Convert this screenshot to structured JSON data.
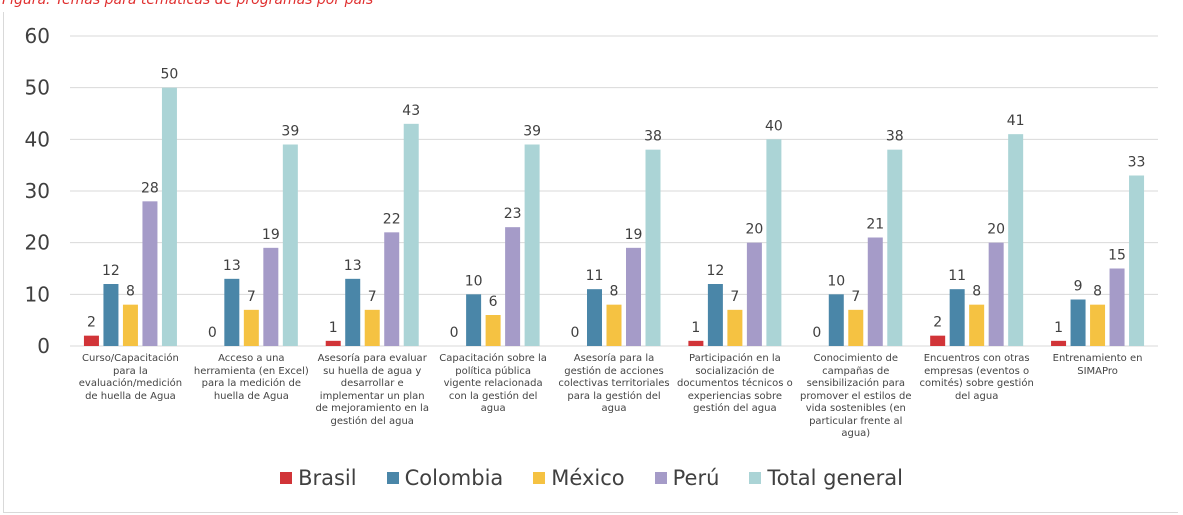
{
  "caption": "Figura: Temas para temáticas de programas por país",
  "chart_data": {
    "type": "bar",
    "categories": [
      "Curso/Capacitación para la evaluación/medición de huella de Agua",
      "Acceso a una herramienta (en Excel) para la medición de huella de Agua",
      "Asesoría para evaluar su huella de agua y desarrollar e implementar un plan de mejoramiento en la gestión del agua",
      "Capacitación sobre la política pública vigente relacionada con la gestión del agua",
      "Asesoría para la gestión de acciones colectivas territoriales para la gestión del agua",
      "Participación en la socialización de documentos técnicos o experiencias sobre gestión del agua",
      "Conocimiento de campañas de sensibilización para promover el estilos de vida sostenibles (en particular frente al agua)",
      "Encuentros con otras empresas (eventos o comités) sobre gestión del agua",
      "Entrenamiento en SIMAPro"
    ],
    "series": [
      {
        "name": "Brasil",
        "color": "#d13438",
        "values": [
          2,
          0,
          1,
          0,
          0,
          1,
          0,
          2,
          1
        ]
      },
      {
        "name": "Colombia",
        "color": "#4a86a8",
        "values": [
          12,
          13,
          13,
          10,
          11,
          12,
          10,
          11,
          9
        ]
      },
      {
        "name": "México",
        "color": "#f5c242",
        "values": [
          8,
          7,
          7,
          6,
          8,
          7,
          7,
          8,
          8
        ]
      },
      {
        "name": "Perú",
        "color": "#a59bc8",
        "values": [
          28,
          19,
          22,
          23,
          19,
          20,
          21,
          20,
          15
        ]
      },
      {
        "name": "Total general",
        "color": "#abd4d6",
        "values": [
          50,
          39,
          43,
          39,
          38,
          40,
          38,
          41,
          33
        ]
      }
    ],
    "ylim": [
      0,
      60
    ],
    "yticks": [
      0,
      10,
      20,
      30,
      40,
      50,
      60
    ],
    "grid": true,
    "legend_position": "bottom",
    "data_labels": true
  }
}
